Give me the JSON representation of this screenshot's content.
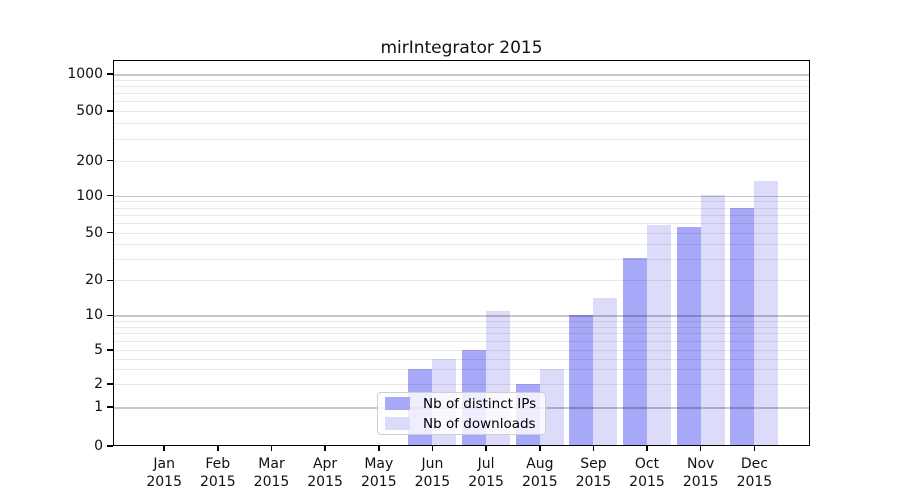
{
  "title": "mirIntegrator 2015",
  "chart_data": {
    "type": "bar",
    "title": "mirIntegrator 2015",
    "categories": [
      "Jan",
      "Feb",
      "Mar",
      "Apr",
      "May",
      "Jun",
      "Jul",
      "Aug",
      "Sep",
      "Oct",
      "Nov",
      "Dec"
    ],
    "year_label": "2015",
    "series": [
      {
        "name": "Nb of distinct IPs",
        "color": "#a8a8f8",
        "values": [
          0,
          0,
          0,
          0,
          0,
          3,
          5,
          2,
          10,
          31,
          56,
          79
        ]
      },
      {
        "name": "Nb of downloads",
        "color": "#dcdcfa",
        "values": [
          0,
          0,
          0,
          0,
          0,
          4,
          11,
          3,
          14,
          58,
          102,
          133
        ]
      }
    ],
    "y_ticks": [
      0,
      1,
      2,
      5,
      10,
      20,
      50,
      100,
      200,
      500,
      1000
    ],
    "yscale": "log-like (symlog)",
    "ylim": [
      0,
      1250
    ],
    "grid": true,
    "legend_position": "lower center-left inside plot"
  },
  "legend": {
    "items": [
      {
        "label": "Nb of distinct IPs",
        "color": "#a8a8f8"
      },
      {
        "label": "Nb of downloads",
        "color": "#dcdcfa"
      }
    ]
  },
  "colors": {
    "distinct_ips_bar": "#a8a8f8",
    "downloads_bar": "#dcdcfa",
    "frame": "#000000",
    "background": "#ffffff"
  }
}
